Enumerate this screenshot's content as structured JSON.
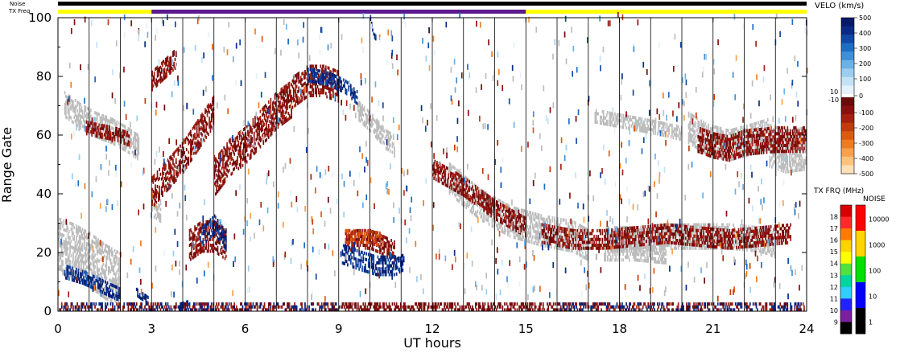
{
  "chart_data": {
    "type": "heatmap",
    "title": "",
    "xlabel": "UT hours",
    "ylabel": "Range Gate",
    "xlim": [
      0,
      24
    ],
    "ylim": [
      0,
      100
    ],
    "x_ticks": [
      0,
      3,
      6,
      9,
      12,
      15,
      18,
      21,
      24
    ],
    "y_ticks": [
      0,
      20,
      40,
      60,
      80,
      100
    ],
    "x_tick_labels": [
      "0",
      "3",
      "6",
      "9",
      "12",
      "15",
      "18",
      "21",
      "24"
    ],
    "y_tick_labels": [
      "0",
      "20",
      "40",
      "60",
      "80",
      "100"
    ],
    "scan_boundaries_ut": [
      1,
      2,
      3,
      4,
      5,
      6,
      7,
      8,
      9,
      10,
      11,
      12,
      13,
      14,
      15,
      16,
      17,
      18,
      19,
      20,
      21,
      22,
      23
    ],
    "top_bars": {
      "noise_label": "Noise",
      "txfreq_label": "TX Freq",
      "noise_color": "#000000",
      "txfreq_segments": [
        {
          "start": 0,
          "end": 3,
          "color": "#ffff00"
        },
        {
          "start": 3,
          "end": 15,
          "color": "#5b1a8e"
        },
        {
          "start": 15,
          "end": 24,
          "color": "#ffff00"
        }
      ]
    },
    "velocity_scale": {
      "title": "VELO (km/s)",
      "unit": "km/s",
      "tick_labels": [
        "500",
        "400",
        "300",
        "200",
        "100",
        "0",
        "-100",
        "-200",
        "-300",
        "-400",
        "-500"
      ],
      "threshold_labels": [
        "10",
        "-10"
      ],
      "positive_colors": [
        "#e6f2fb",
        "#c4e2f7",
        "#9bcdf0",
        "#6cb1e6",
        "#3f8fd6",
        "#1f6cc4",
        "#1148a6",
        "#0a2a86",
        "#061a6a"
      ],
      "negative_colors": [
        "#6b0a0a",
        "#8a1010",
        "#a52010",
        "#c23a0e",
        "#dc5a10",
        "#ee7d22",
        "#f7a04d",
        "#fbc27e",
        "#fde0b8"
      ]
    },
    "txfreq_scale": {
      "title": "TX FRQ (MHz)",
      "tick_labels": [
        "18",
        "17",
        "16",
        "15",
        "14",
        "13",
        "12",
        "11",
        "10",
        "9"
      ],
      "colors": [
        "#d40000",
        "#ff2a2a",
        "#ff7a00",
        "#ffd400",
        "#ffff00",
        "#55e040",
        "#00d4a0",
        "#33ccff",
        "#2222ff",
        "#7a1fa0",
        "#000000"
      ]
    },
    "noise_scale": {
      "title": "NOISE",
      "tick_labels": [
        "10000",
        "1000",
        "100",
        "10",
        "1"
      ],
      "colors": [
        "#ff0000",
        "#ffd400",
        "#00e000",
        "#0000ff",
        "#000000"
      ]
    },
    "ground_scatter_color": "#bdbdbd",
    "features": [
      {
        "kind": "ground",
        "t": [
          0.0,
          0.5,
          1.0,
          1.5,
          2.0
        ],
        "g": [
          22,
          20,
          17,
          13,
          10
        ],
        "w": 9
      },
      {
        "kind": "ground",
        "t": [
          0.2,
          0.7,
          1.2,
          1.7,
          2.2,
          2.6
        ],
        "g": [
          70,
          66,
          63,
          61,
          58,
          55
        ],
        "w": 4
      },
      {
        "kind": "ground",
        "t": [
          3.0,
          3.3
        ],
        "g": [
          36,
          34
        ],
        "w": 4
      },
      {
        "kind": "ground",
        "t": [
          9.6,
          10.0,
          10.5,
          10.8
        ],
        "g": [
          68,
          64,
          58,
          56
        ],
        "w": 3
      },
      {
        "kind": "ground",
        "t": [
          12.5,
          13.5,
          14.5,
          15.5,
          16.5,
          17.0
        ],
        "g": [
          45,
          36,
          30,
          27,
          25,
          22
        ],
        "w": 5
      },
      {
        "kind": "ground",
        "t": [
          17.5,
          18.5,
          19.5,
          20.5,
          21.5,
          22.5,
          23.0
        ],
        "g": [
          24,
          24,
          25,
          25,
          25,
          24,
          22
        ],
        "w": 4
      },
      {
        "kind": "ground",
        "t": [
          17.5,
          18.5,
          19.5
        ],
        "g": [
          20,
          20,
          19
        ],
        "w": 3
      },
      {
        "kind": "ground",
        "t": [
          20.2,
          20.8,
          21.5,
          22.2,
          22.8
        ],
        "g": [
          62,
          58,
          56,
          58,
          60
        ],
        "w": 5
      },
      {
        "kind": "ground",
        "t": [
          22.8,
          23.3,
          24.0
        ],
        "g": [
          56,
          54,
          55
        ],
        "w": 7
      },
      {
        "kind": "ground",
        "t": [
          17.2,
          18.2,
          19.2,
          20.0
        ],
        "g": [
          66,
          64,
          62,
          60
        ],
        "w": 2
      },
      {
        "kind": "neg",
        "t": [
          3.0,
          3.5,
          4.0,
          4.5,
          5.0
        ],
        "g": [
          40,
          46,
          52,
          60,
          68
        ],
        "w": 5
      },
      {
        "kind": "neg",
        "t": [
          3.0,
          3.4,
          3.8
        ],
        "g": [
          78,
          82,
          86
        ],
        "w": 3
      },
      {
        "kind": "neg",
        "t": [
          5.0,
          5.5,
          6.0,
          6.5,
          7.0,
          7.5
        ],
        "g": [
          45,
          52,
          56,
          62,
          68,
          72
        ],
        "w": 6
      },
      {
        "kind": "neg",
        "t": [
          7.5,
          8.0,
          8.5,
          9.0
        ],
        "g": [
          74,
          78,
          78,
          76
        ],
        "w": 5
      },
      {
        "kind": "neg",
        "t": [
          4.2,
          4.6,
          5.0,
          5.4
        ],
        "g": [
          22,
          25,
          25,
          22
        ],
        "w": 5
      },
      {
        "kind": "neg",
        "t": [
          9.2,
          9.6,
          10.0,
          10.4,
          10.8
        ],
        "g": [
          23,
          24,
          24,
          22,
          20
        ],
        "w": 3
      },
      {
        "kind": "neg",
        "t": [
          0.9,
          1.3,
          1.8,
          2.3
        ],
        "g": [
          62,
          61,
          60,
          58
        ],
        "w": 2
      },
      {
        "kind": "neg",
        "t": [
          15.5,
          16.5,
          17.5,
          18.5,
          19.5,
          20.5,
          21.5,
          22.5,
          23.5
        ],
        "g": [
          26,
          24,
          24,
          25,
          26,
          25,
          24,
          25,
          26
        ],
        "w": 3
      },
      {
        "kind": "neg",
        "t": [
          20.5,
          21.0,
          21.5,
          22.0,
          23.0,
          24.0
        ],
        "g": [
          58,
          56,
          55,
          57,
          58,
          58
        ],
        "w": 4
      },
      {
        "kind": "neg",
        "t": [
          12.0,
          13.0,
          14.0,
          15.0
        ],
        "g": [
          48,
          42,
          34,
          28
        ],
        "w": 3
      },
      {
        "kind": "pos",
        "t": [
          0.2,
          0.8,
          1.4,
          2.0
        ],
        "g": [
          13,
          11,
          8,
          5
        ],
        "w": 2
      },
      {
        "kind": "pos",
        "t": [
          4.6,
          5.0,
          5.4
        ],
        "g": [
          25,
          29,
          23
        ],
        "w": 3
      },
      {
        "kind": "pos",
        "t": [
          9.1,
          9.6,
          10.2,
          10.8,
          11.1
        ],
        "g": [
          19,
          17,
          15,
          15,
          17
        ],
        "w": 3
      },
      {
        "kind": "pos",
        "t": [
          8.0,
          8.6,
          9.2,
          9.6
        ],
        "g": [
          80,
          79,
          76,
          72
        ],
        "w": 2
      },
      {
        "kind": "pos",
        "t": [
          10.0,
          10.2
        ],
        "g": [
          99,
          91
        ],
        "w": 1
      },
      {
        "kind": "pos",
        "t": [
          3.9,
          4.2
        ],
        "g": [
          1,
          2
        ],
        "w": 1
      },
      {
        "kind": "pos",
        "t": [
          2.5,
          2.9
        ],
        "g": [
          6,
          3
        ],
        "w": 1
      },
      {
        "kind": "orange",
        "t": [
          9.2,
          9.8,
          10.4
        ],
        "g": [
          25,
          25,
          24
        ],
        "w": 2
      }
    ]
  }
}
